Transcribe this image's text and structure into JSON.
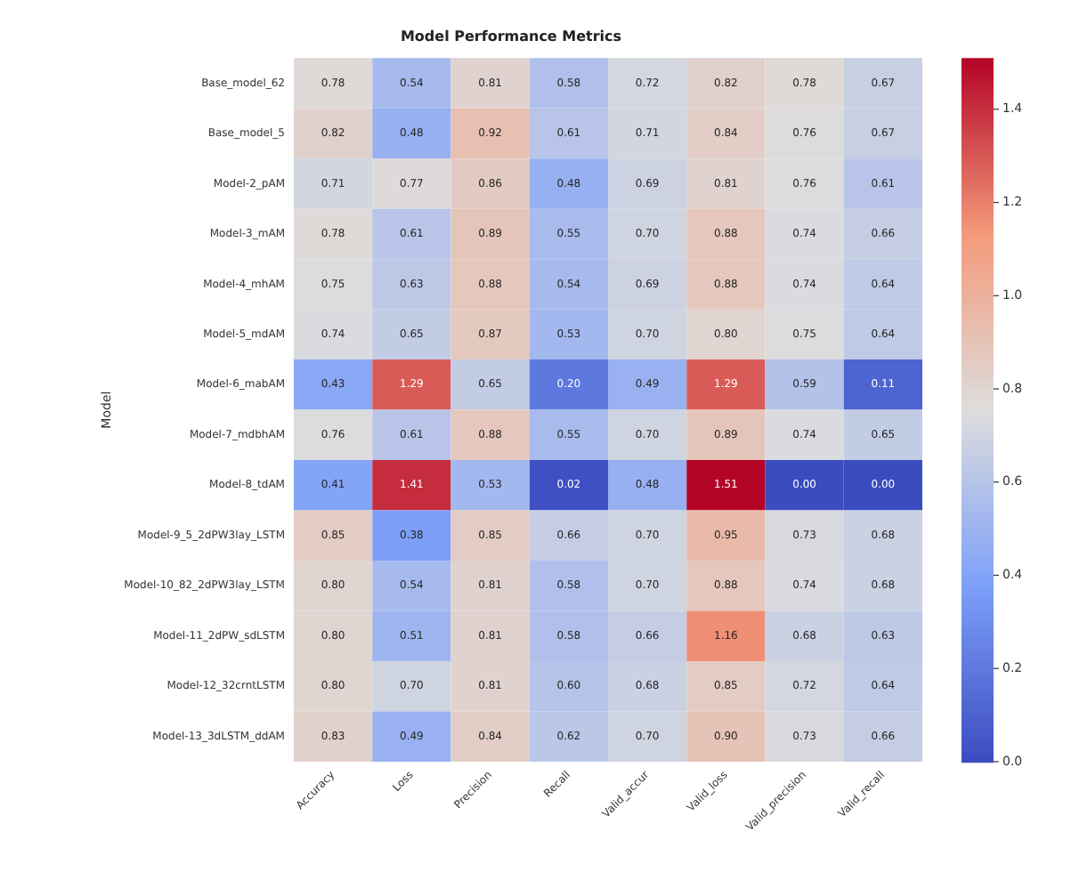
{
  "chart_data": {
    "type": "heatmap",
    "title": "Model Performance Metrics",
    "ylabel": "Model",
    "categories": [
      "Accuracy",
      "Loss",
      "Precision",
      "Recall",
      "Valid_accur",
      "Valid_loss",
      "Valid_precision",
      "Valid_recall"
    ],
    "y_categories": [
      "Base_model_62",
      "Base_model_5",
      "Model-2_pAM",
      "Model-3_mAM",
      "Model-4_mhAM",
      "Model-5_mdAM",
      "Model-6_mabAM",
      "Model-7_mdbhAM",
      "Model-8_tdAM",
      "Model-9_5_2dPW3lay_LSTM",
      "Model-10_82_2dPW3lay_LSTM",
      "Model-11_2dPW_sdLSTM",
      "Model-12_32crntLSTM",
      "Model-13_3dLSTM_ddAM"
    ],
    "cells": [
      [
        0.78,
        0.54,
        0.81,
        0.58,
        0.72,
        0.82,
        0.78,
        0.67
      ],
      [
        0.82,
        0.48,
        0.92,
        0.61,
        0.71,
        0.84,
        0.76,
        0.67
      ],
      [
        0.71,
        0.77,
        0.86,
        0.48,
        0.69,
        0.81,
        0.76,
        0.61
      ],
      [
        0.78,
        0.61,
        0.89,
        0.55,
        0.7,
        0.88,
        0.74,
        0.66
      ],
      [
        0.75,
        0.63,
        0.88,
        0.54,
        0.69,
        0.88,
        0.74,
        0.64
      ],
      [
        0.74,
        0.65,
        0.87,
        0.53,
        0.7,
        0.8,
        0.75,
        0.64
      ],
      [
        0.43,
        1.29,
        0.65,
        0.2,
        0.49,
        1.29,
        0.59,
        0.11
      ],
      [
        0.76,
        0.61,
        0.88,
        0.55,
        0.7,
        0.89,
        0.74,
        0.65
      ],
      [
        0.41,
        1.41,
        0.53,
        0.02,
        0.48,
        1.51,
        0.0,
        0.0
      ],
      [
        0.85,
        0.38,
        0.85,
        0.66,
        0.7,
        0.95,
        0.73,
        0.68
      ],
      [
        0.8,
        0.54,
        0.81,
        0.58,
        0.7,
        0.88,
        0.74,
        0.68
      ],
      [
        0.8,
        0.51,
        0.81,
        0.58,
        0.66,
        1.16,
        0.68,
        0.63
      ],
      [
        0.8,
        0.7,
        0.81,
        0.6,
        0.68,
        0.85,
        0.72,
        0.64
      ],
      [
        0.83,
        0.49,
        0.84,
        0.62,
        0.7,
        0.9,
        0.73,
        0.66
      ]
    ],
    "cell_labels": [
      [
        "0.78",
        "0.54",
        "0.81",
        "0.58",
        "0.72",
        "0.82",
        "0.78",
        "0.67"
      ],
      [
        "0.82",
        "0.48",
        "0.92",
        "0.61",
        "0.71",
        "0.84",
        "0.76",
        "0.67"
      ],
      [
        "0.71",
        "0.77",
        "0.86",
        "0.48",
        "0.69",
        "0.81",
        "0.76",
        "0.61"
      ],
      [
        "0.78",
        "0.61",
        "0.89",
        "0.55",
        "0.70",
        "0.88",
        "0.74",
        "0.66"
      ],
      [
        "0.75",
        "0.63",
        "0.88",
        "0.54",
        "0.69",
        "0.88",
        "0.74",
        "0.64"
      ],
      [
        "0.74",
        "0.65",
        "0.87",
        "0.53",
        "0.70",
        "0.80",
        "0.75",
        "0.64"
      ],
      [
        "0.43",
        "1.29",
        "0.65",
        "0.20",
        "0.49",
        "1.29",
        "0.59",
        "0.11"
      ],
      [
        "0.76",
        "0.61",
        "0.88",
        "0.55",
        "0.70",
        "0.89",
        "0.74",
        "0.65"
      ],
      [
        "0.41",
        "1.41",
        "0.53",
        "0.02",
        "0.48",
        "1.51",
        "0.00",
        "0.00"
      ],
      [
        "0.85",
        "0.38",
        "0.85",
        "0.66",
        "0.70",
        "0.95",
        "0.73",
        "0.68"
      ],
      [
        "0.80",
        "0.54",
        "0.81",
        "0.58",
        "0.70",
        "0.88",
        "0.74",
        "0.68"
      ],
      [
        "0.80",
        "0.51",
        "0.81",
        "0.58",
        "0.66",
        "1.16",
        "0.68",
        "0.63"
      ],
      [
        "0.80",
        "0.70",
        "0.81",
        "0.60",
        "0.68",
        "0.85",
        "0.72",
        "0.64"
      ],
      [
        "0.83",
        "0.49",
        "0.84",
        "0.62",
        "0.70",
        "0.90",
        "0.73",
        "0.66"
      ]
    ],
    "data_labels": true,
    "clim": [
      0,
      1.51
    ],
    "cticks": [
      {
        "value": 0,
        "label": "0.0"
      },
      0.2,
      0.4,
      0.6,
      0.8,
      {
        "value": 1,
        "label": "1.0"
      },
      1.2,
      1.4
    ]
  }
}
